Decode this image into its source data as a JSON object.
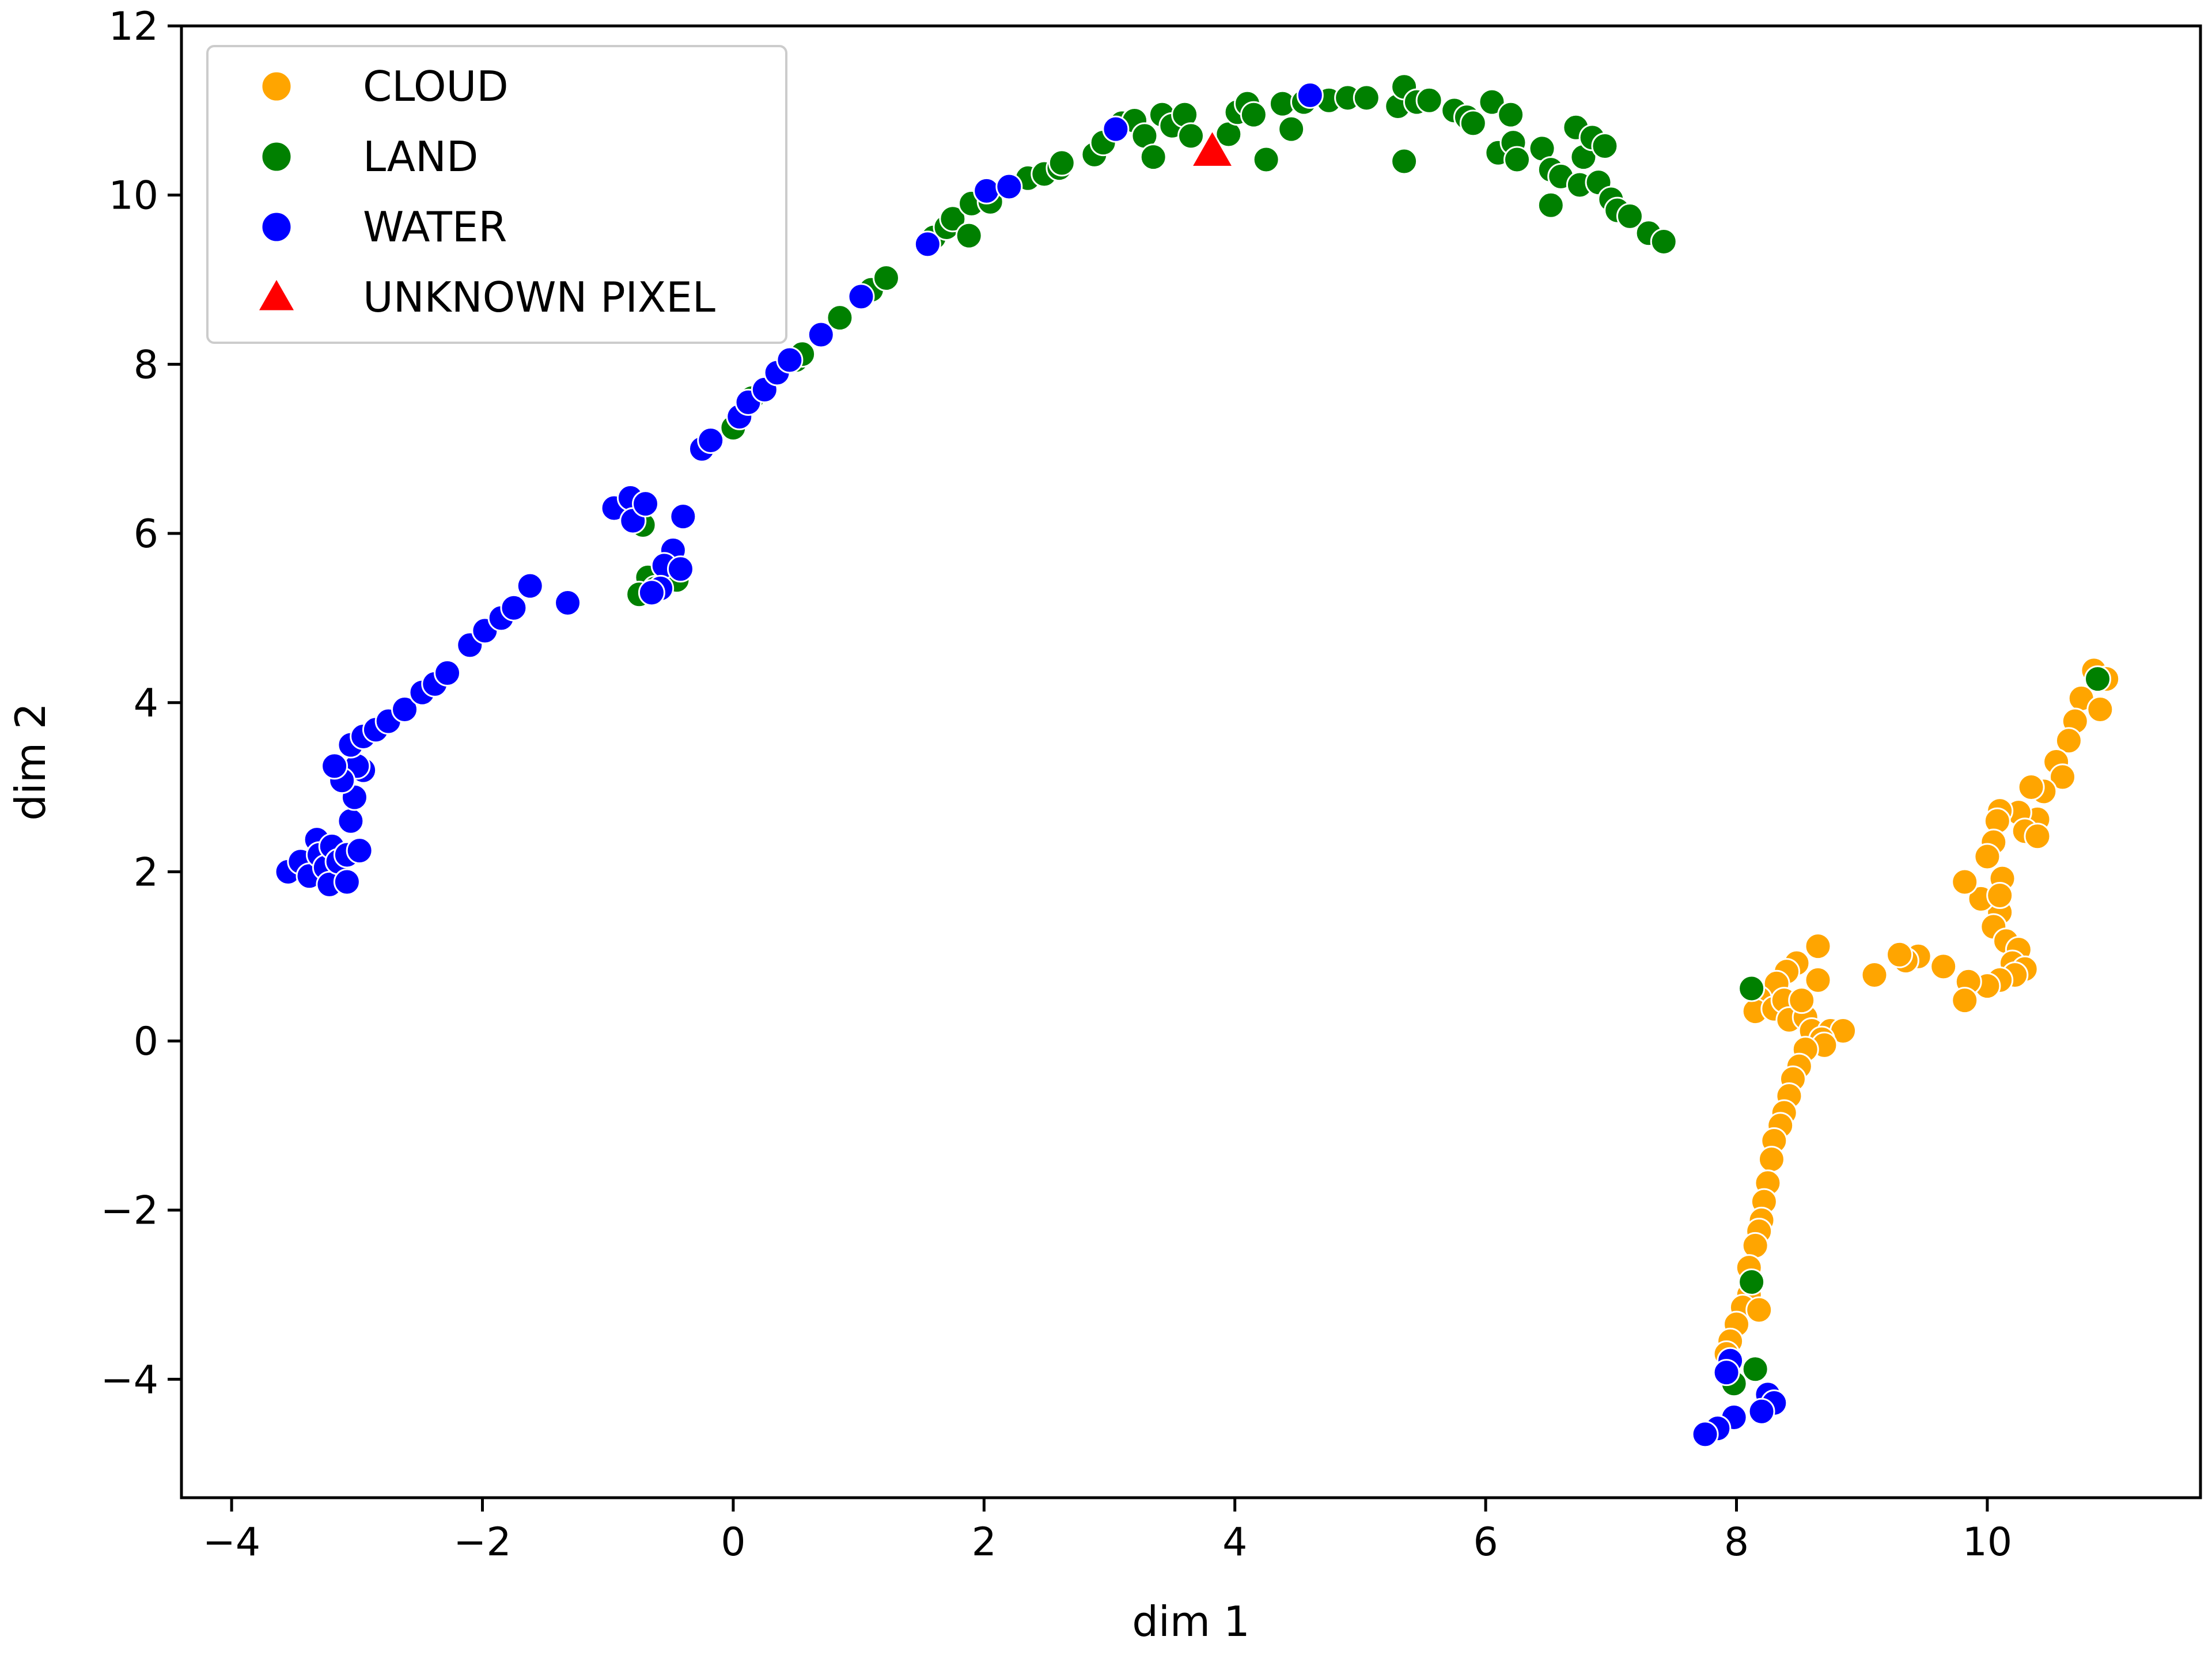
{
  "chart_data": {
    "type": "scatter",
    "xlabel": "dim 1",
    "ylabel": "dim 2",
    "xlim": [
      -4.4,
      11.7
    ],
    "ylim": [
      -5.4,
      12.0
    ],
    "xticks": [
      -4,
      -2,
      0,
      2,
      4,
      6,
      8,
      10
    ],
    "yticks": [
      -4,
      -2,
      0,
      2,
      4,
      6,
      8,
      10,
      12
    ],
    "xtick_labels": [
      "−4",
      "−2",
      "0",
      "2",
      "4",
      "6",
      "8",
      "10"
    ],
    "ytick_labels": [
      "−4",
      "−2",
      "0",
      "2",
      "4",
      "6",
      "8",
      "10",
      "12"
    ],
    "grid": false,
    "legend_position": "top-left",
    "series": [
      {
        "name": "CLOUD",
        "color": "#ffa500",
        "marker": "circle",
        "points": [
          [
            10.85,
            4.38
          ],
          [
            10.95,
            4.28
          ],
          [
            10.75,
            4.05
          ],
          [
            10.9,
            3.92
          ],
          [
            10.7,
            3.78
          ],
          [
            10.65,
            3.55
          ],
          [
            10.55,
            3.3
          ],
          [
            10.6,
            3.12
          ],
          [
            10.45,
            2.95
          ],
          [
            10.35,
            3.0
          ],
          [
            10.4,
            2.62
          ],
          [
            10.25,
            2.7
          ],
          [
            10.3,
            2.48
          ],
          [
            10.4,
            2.42
          ],
          [
            10.1,
            2.72
          ],
          [
            10.08,
            2.6
          ],
          [
            10.05,
            2.35
          ],
          [
            10.0,
            2.18
          ],
          [
            10.12,
            1.92
          ],
          [
            10.1,
            1.52
          ],
          [
            10.05,
            1.35
          ],
          [
            9.95,
            1.68
          ],
          [
            10.1,
            1.72
          ],
          [
            9.82,
            1.88
          ],
          [
            10.15,
            1.18
          ],
          [
            10.25,
            1.08
          ],
          [
            10.2,
            0.92
          ],
          [
            10.3,
            0.85
          ],
          [
            10.22,
            0.78
          ],
          [
            10.1,
            0.72
          ],
          [
            10.0,
            0.65
          ],
          [
            9.85,
            0.7
          ],
          [
            9.82,
            0.48
          ],
          [
            9.65,
            0.88
          ],
          [
            9.45,
            1.0
          ],
          [
            9.35,
            0.95
          ],
          [
            9.3,
            1.02
          ],
          [
            9.1,
            0.78
          ],
          [
            8.65,
            1.12
          ],
          [
            8.48,
            0.92
          ],
          [
            8.4,
            0.82
          ],
          [
            8.32,
            0.68
          ],
          [
            8.18,
            0.5
          ],
          [
            8.15,
            0.35
          ],
          [
            8.3,
            0.38
          ],
          [
            8.38,
            0.48
          ],
          [
            8.42,
            0.25
          ],
          [
            8.55,
            0.28
          ],
          [
            8.65,
            0.72
          ],
          [
            8.52,
            0.48
          ],
          [
            8.6,
            0.12
          ],
          [
            8.75,
            0.12
          ],
          [
            8.85,
            0.12
          ],
          [
            8.68,
            0.02
          ],
          [
            8.7,
            -0.05
          ],
          [
            8.55,
            -0.1
          ],
          [
            8.5,
            -0.3
          ],
          [
            8.45,
            -0.45
          ],
          [
            8.42,
            -0.65
          ],
          [
            8.38,
            -0.85
          ],
          [
            8.35,
            -1.0
          ],
          [
            8.3,
            -1.18
          ],
          [
            8.28,
            -1.4
          ],
          [
            8.25,
            -1.68
          ],
          [
            8.22,
            -1.9
          ],
          [
            8.2,
            -2.12
          ],
          [
            8.18,
            -2.25
          ],
          [
            8.15,
            -2.42
          ],
          [
            8.1,
            -2.68
          ],
          [
            8.1,
            -3.0
          ],
          [
            8.05,
            -3.15
          ],
          [
            8.18,
            -3.18
          ],
          [
            8.0,
            -3.35
          ],
          [
            7.95,
            -3.55
          ],
          [
            7.92,
            -3.7
          ]
        ]
      },
      {
        "name": "LAND",
        "color": "#008000",
        "marker": "circle",
        "points": [
          [
            10.88,
            4.28
          ],
          [
            8.12,
            0.62
          ],
          [
            8.12,
            -2.85
          ],
          [
            8.15,
            -3.88
          ],
          [
            7.98,
            -4.05
          ],
          [
            -0.72,
            6.1
          ],
          [
            -0.68,
            5.48
          ],
          [
            -0.75,
            5.28
          ],
          [
            -0.45,
            5.45
          ],
          [
            -0.62,
            5.35
          ],
          [
            0.15,
            7.6
          ],
          [
            0.0,
            7.25
          ],
          [
            0.5,
            8.05
          ],
          [
            0.55,
            8.12
          ],
          [
            0.85,
            8.55
          ],
          [
            1.1,
            8.88
          ],
          [
            1.22,
            9.02
          ],
          [
            1.6,
            9.5
          ],
          [
            1.7,
            9.62
          ],
          [
            1.75,
            9.72
          ],
          [
            1.88,
            9.52
          ],
          [
            1.9,
            9.9
          ],
          [
            2.05,
            9.92
          ],
          [
            2.35,
            10.2
          ],
          [
            2.48,
            10.25
          ],
          [
            2.6,
            10.32
          ],
          [
            2.62,
            10.38
          ],
          [
            2.88,
            10.48
          ],
          [
            2.95,
            10.62
          ],
          [
            3.1,
            10.85
          ],
          [
            3.2,
            10.88
          ],
          [
            3.28,
            10.7
          ],
          [
            3.35,
            10.45
          ],
          [
            3.42,
            10.95
          ],
          [
            3.5,
            10.82
          ],
          [
            3.6,
            10.95
          ],
          [
            3.65,
            10.7
          ],
          [
            3.95,
            10.72
          ],
          [
            4.02,
            10.98
          ],
          [
            4.1,
            11.08
          ],
          [
            4.15,
            10.95
          ],
          [
            4.25,
            10.42
          ],
          [
            4.38,
            11.08
          ],
          [
            4.45,
            10.78
          ],
          [
            4.55,
            11.1
          ],
          [
            4.75,
            11.12
          ],
          [
            4.9,
            11.15
          ],
          [
            5.05,
            11.15
          ],
          [
            5.3,
            11.05
          ],
          [
            5.35,
            11.28
          ],
          [
            5.35,
            10.4
          ],
          [
            5.45,
            11.1
          ],
          [
            5.55,
            11.12
          ],
          [
            5.75,
            11.0
          ],
          [
            5.85,
            10.92
          ],
          [
            5.9,
            10.85
          ],
          [
            6.05,
            11.1
          ],
          [
            6.1,
            10.5
          ],
          [
            6.2,
            10.95
          ],
          [
            6.22,
            10.62
          ],
          [
            6.25,
            10.42
          ],
          [
            6.45,
            10.55
          ],
          [
            6.52,
            10.3
          ],
          [
            6.52,
            9.88
          ],
          [
            6.6,
            10.22
          ],
          [
            6.72,
            10.8
          ],
          [
            6.75,
            10.12
          ],
          [
            6.78,
            10.45
          ],
          [
            6.85,
            10.68
          ],
          [
            6.9,
            10.15
          ],
          [
            6.95,
            10.58
          ],
          [
            7.0,
            9.95
          ],
          [
            7.05,
            9.82
          ],
          [
            7.15,
            9.75
          ],
          [
            7.3,
            9.55
          ],
          [
            7.42,
            9.45
          ]
        ]
      },
      {
        "name": "WATER",
        "color": "#0000ff",
        "marker": "circle",
        "points": [
          [
            -3.55,
            2.0
          ],
          [
            -3.45,
            2.12
          ],
          [
            -3.38,
            1.95
          ],
          [
            -3.32,
            2.38
          ],
          [
            -3.3,
            2.2
          ],
          [
            -3.25,
            2.05
          ],
          [
            -3.22,
            1.85
          ],
          [
            -3.2,
            2.3
          ],
          [
            -3.15,
            2.12
          ],
          [
            -3.08,
            1.88
          ],
          [
            -3.08,
            2.2
          ],
          [
            -3.05,
            2.6
          ],
          [
            -3.02,
            2.88
          ],
          [
            -2.98,
            2.25
          ],
          [
            -2.95,
            3.2
          ],
          [
            -3.0,
            3.25
          ],
          [
            -3.12,
            3.08
          ],
          [
            -3.18,
            3.25
          ],
          [
            -3.05,
            3.5
          ],
          [
            -2.95,
            3.6
          ],
          [
            -2.85,
            3.68
          ],
          [
            -2.75,
            3.78
          ],
          [
            -2.62,
            3.92
          ],
          [
            -2.48,
            4.12
          ],
          [
            -2.38,
            4.22
          ],
          [
            -2.28,
            4.35
          ],
          [
            -2.1,
            4.68
          ],
          [
            -1.98,
            4.85
          ],
          [
            -1.85,
            5.0
          ],
          [
            -1.75,
            5.12
          ],
          [
            -1.62,
            5.38
          ],
          [
            -1.32,
            5.18
          ],
          [
            -0.95,
            6.3
          ],
          [
            -0.82,
            6.42
          ],
          [
            -0.8,
            6.15
          ],
          [
            -0.7,
            6.35
          ],
          [
            -0.4,
            6.2
          ],
          [
            -0.48,
            5.8
          ],
          [
            -0.55,
            5.62
          ],
          [
            -0.42,
            5.58
          ],
          [
            -0.58,
            5.35
          ],
          [
            -0.65,
            5.3
          ],
          [
            -0.25,
            7.0
          ],
          [
            -0.18,
            7.1
          ],
          [
            0.05,
            7.38
          ],
          [
            0.12,
            7.55
          ],
          [
            0.25,
            7.7
          ],
          [
            0.35,
            7.9
          ],
          [
            0.45,
            8.05
          ],
          [
            0.7,
            8.35
          ],
          [
            1.02,
            8.8
          ],
          [
            1.55,
            9.42
          ],
          [
            2.02,
            10.05
          ],
          [
            2.2,
            10.1
          ],
          [
            3.05,
            10.78
          ],
          [
            4.6,
            11.18
          ],
          [
            7.95,
            -3.78
          ],
          [
            7.92,
            -3.92
          ],
          [
            8.25,
            -4.18
          ],
          [
            8.3,
            -4.28
          ],
          [
            8.2,
            -4.38
          ],
          [
            7.98,
            -4.45
          ],
          [
            7.85,
            -4.58
          ],
          [
            7.75,
            -4.65
          ]
        ]
      },
      {
        "name": "UNKNOWN PIXEL",
        "color": "#ff0000",
        "marker": "triangle",
        "points": [
          [
            3.82,
            10.52
          ]
        ]
      }
    ]
  }
}
